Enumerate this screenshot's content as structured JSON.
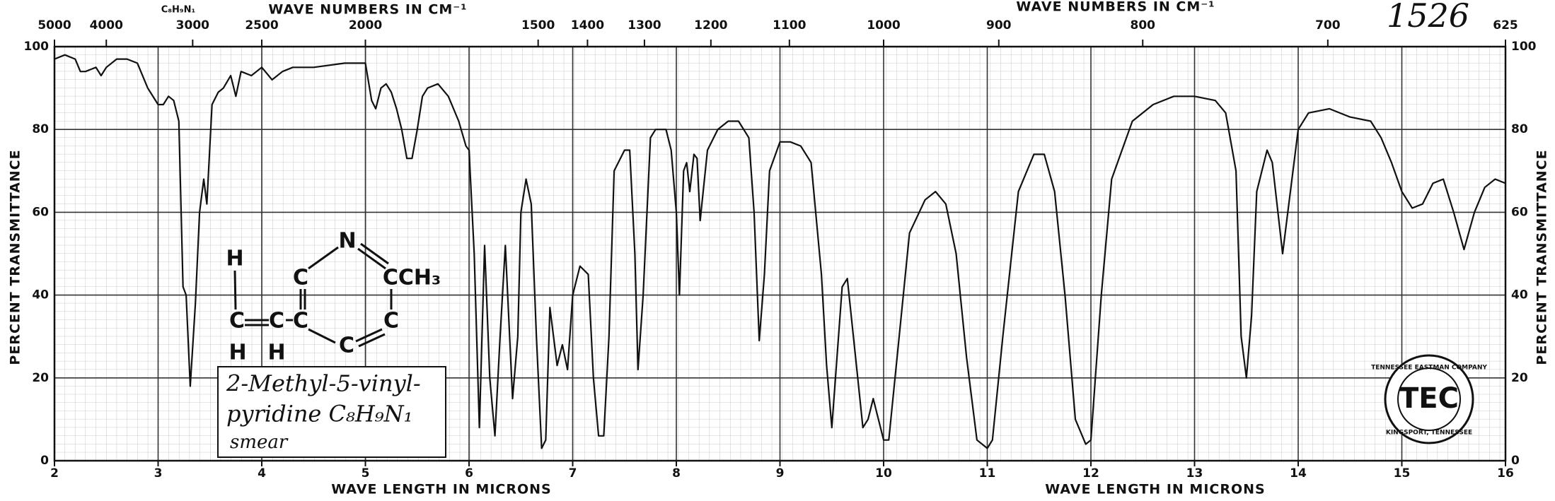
{
  "chart_data": {
    "type": "line",
    "catalog_number": "1526",
    "formula_header": "C₈H₉N₁",
    "x_label": "WAVE LENGTH IN MICRONS",
    "x2_label": "WAVE NUMBERS IN CM⁻¹",
    "y_label": "PERCENT TRANSMITTANCE",
    "xlim": [
      2,
      16
    ],
    "xticks": [
      2,
      3,
      4,
      5,
      6,
      7,
      8,
      9,
      10,
      11,
      12,
      13,
      14,
      15,
      16
    ],
    "x2ticks": [
      5000,
      4000,
      3000,
      2500,
      2000,
      1500,
      1400,
      1300,
      1200,
      1100,
      1000,
      900,
      800,
      700,
      625
    ],
    "ylim": [
      0,
      100
    ],
    "yticks": [
      0,
      20,
      40,
      60,
      80,
      100
    ],
    "grid": true,
    "color": "#111111",
    "x": [
      2.0,
      2.1,
      2.2,
      2.25,
      2.3,
      2.4,
      2.45,
      2.5,
      2.6,
      2.7,
      2.8,
      2.9,
      3.0,
      3.05,
      3.1,
      3.15,
      3.2,
      3.24,
      3.27,
      3.31,
      3.36,
      3.4,
      3.44,
      3.47,
      3.52,
      3.58,
      3.63,
      3.7,
      3.75,
      3.8,
      3.9,
      4.0,
      4.1,
      4.2,
      4.3,
      4.5,
      4.8,
      4.95,
      5.0,
      5.06,
      5.1,
      5.15,
      5.2,
      5.25,
      5.3,
      5.35,
      5.4,
      5.45,
      5.5,
      5.55,
      5.6,
      5.7,
      5.8,
      5.9,
      5.97,
      6.0,
      6.05,
      6.1,
      6.15,
      6.2,
      6.25,
      6.3,
      6.35,
      6.42,
      6.47,
      6.5,
      6.55,
      6.6,
      6.65,
      6.7,
      6.74,
      6.78,
      6.85,
      6.9,
      6.95,
      7.0,
      7.07,
      7.15,
      7.2,
      7.25,
      7.3,
      7.35,
      7.4,
      7.5,
      7.55,
      7.6,
      7.63,
      7.68,
      7.75,
      7.8,
      7.9,
      7.95,
      8.0,
      8.03,
      8.07,
      8.1,
      8.13,
      8.17,
      8.2,
      8.23,
      8.3,
      8.4,
      8.5,
      8.6,
      8.7,
      8.75,
      8.8,
      8.85,
      8.9,
      9.0,
      9.1,
      9.2,
      9.3,
      9.4,
      9.45,
      9.5,
      9.6,
      9.65,
      9.75,
      9.8,
      9.85,
      9.9,
      10.0,
      10.05,
      10.15,
      10.25,
      10.4,
      10.5,
      10.6,
      10.7,
      10.8,
      10.9,
      11.0,
      11.05,
      11.15,
      11.3,
      11.45,
      11.55,
      11.65,
      11.75,
      11.85,
      11.95,
      12.0,
      12.1,
      12.2,
      12.4,
      12.6,
      12.8,
      13.0,
      13.2,
      13.3,
      13.4,
      13.45,
      13.5,
      13.55,
      13.6,
      13.7,
      13.75,
      13.85,
      13.9,
      14.0,
      14.1,
      14.3,
      14.5,
      14.7,
      14.8,
      14.9,
      15.0,
      15.1,
      15.2,
      15.3,
      15.4,
      15.5,
      15.6,
      15.7,
      15.8,
      15.9,
      16.0
    ],
    "values": [
      97,
      98,
      97,
      94,
      94,
      95,
      93,
      95,
      97,
      97,
      96,
      90,
      86,
      86,
      88,
      87,
      82,
      42,
      40,
      18,
      38,
      60,
      68,
      62,
      86,
      89,
      90,
      93,
      88,
      94,
      93,
      95,
      92,
      94,
      95,
      95,
      96,
      96,
      96,
      87,
      85,
      90,
      91,
      89,
      85,
      80,
      73,
      73,
      80,
      88,
      90,
      91,
      88,
      82,
      76,
      75,
      50,
      8,
      52,
      20,
      6,
      30,
      52,
      15,
      30,
      60,
      68,
      62,
      30,
      3,
      5,
      37,
      23,
      28,
      22,
      40,
      47,
      45,
      20,
      6,
      6,
      30,
      70,
      75,
      75,
      50,
      22,
      40,
      78,
      80,
      80,
      75,
      60,
      40,
      70,
      72,
      65,
      74,
      73,
      58,
      75,
      80,
      82,
      82,
      78,
      60,
      29,
      45,
      70,
      77,
      77,
      76,
      72,
      45,
      23,
      8,
      42,
      44,
      20,
      8,
      10,
      15,
      5,
      5,
      30,
      55,
      63,
      65,
      62,
      50,
      25,
      5,
      3,
      5,
      30,
      65,
      74,
      74,
      65,
      40,
      10,
      4,
      5,
      40,
      68,
      82,
      86,
      88,
      88,
      87,
      84,
      70,
      30,
      20,
      35,
      65,
      75,
      72,
      50,
      60,
      80,
      84,
      85,
      83,
      82,
      78,
      72,
      65,
      61,
      62,
      67,
      68,
      60,
      51,
      60,
      66,
      68,
      67
    ],
    "sample_note": [
      "2-Methyl-5-vinyl-",
      "pyridine C₈H₉N₁",
      "smear"
    ],
    "structure_atoms": [
      "H",
      "C",
      "H",
      "C",
      "H",
      "C",
      "C",
      "N",
      "CCH₃",
      "C",
      "C"
    ],
    "logo": {
      "top": "TENNESSEE EASTMAN COMPANY",
      "mark": "TEC",
      "bottom": "KINGSPORT, TENNESSEE"
    }
  }
}
